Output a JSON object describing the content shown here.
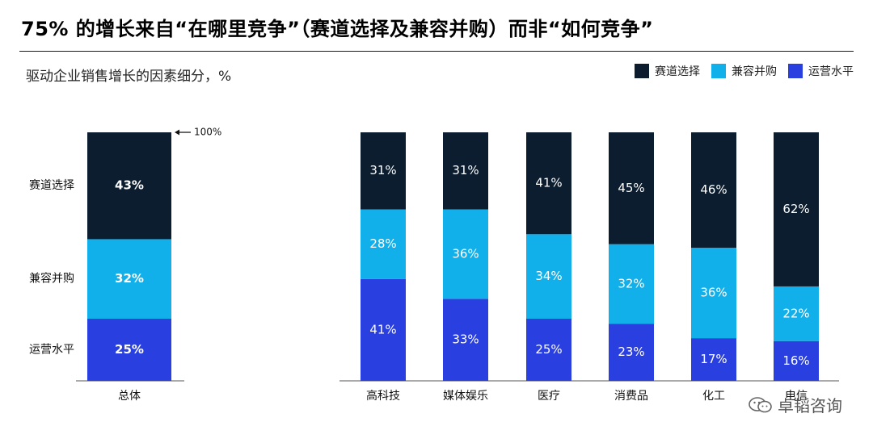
{
  "page": {
    "title": "75% 的增长来自“在哪里竞争”（赛道选择及兼容并购）而非“如何竞争”",
    "subtitle": "驱动企业销售增长的因素细分，%",
    "watermark": "卓韬咨询"
  },
  "legend": [
    {
      "label": "赛道选择",
      "color": "#0b1d2f"
    },
    {
      "label": "兼容并购",
      "color": "#12b0ea"
    },
    {
      "label": "运营水平",
      "color": "#2a3fe0"
    }
  ],
  "chart_data": [
    {
      "type": "bar",
      "stacked": true,
      "categories": [
        "总体"
      ],
      "series": [
        {
          "name": "运营水平",
          "values": [
            25
          ],
          "color": "#2a3fe0"
        },
        {
          "name": "兼容并购",
          "values": [
            32
          ],
          "color": "#12b0ea"
        },
        {
          "name": "赛道选择",
          "values": [
            43
          ],
          "color": "#0b1d2f"
        }
      ],
      "row_labels": [
        "赛道选择",
        "兼容并购",
        "运营水平"
      ],
      "total_annotation": "100%",
      "ylim": [
        0,
        100
      ]
    },
    {
      "type": "bar",
      "stacked": true,
      "categories": [
        "高科技",
        "媒体娱乐",
        "医疗",
        "消费品",
        "化工",
        "电信"
      ],
      "series": [
        {
          "name": "运营水平",
          "values": [
            41,
            33,
            25,
            23,
            17,
            16
          ],
          "color": "#2a3fe0"
        },
        {
          "name": "兼容并购",
          "values": [
            28,
            36,
            34,
            32,
            36,
            22
          ],
          "color": "#12b0ea"
        },
        {
          "name": "赛道选择",
          "values": [
            31,
            31,
            41,
            45,
            46,
            62
          ],
          "color": "#0b1d2f"
        }
      ],
      "ylim": [
        0,
        100
      ]
    }
  ]
}
